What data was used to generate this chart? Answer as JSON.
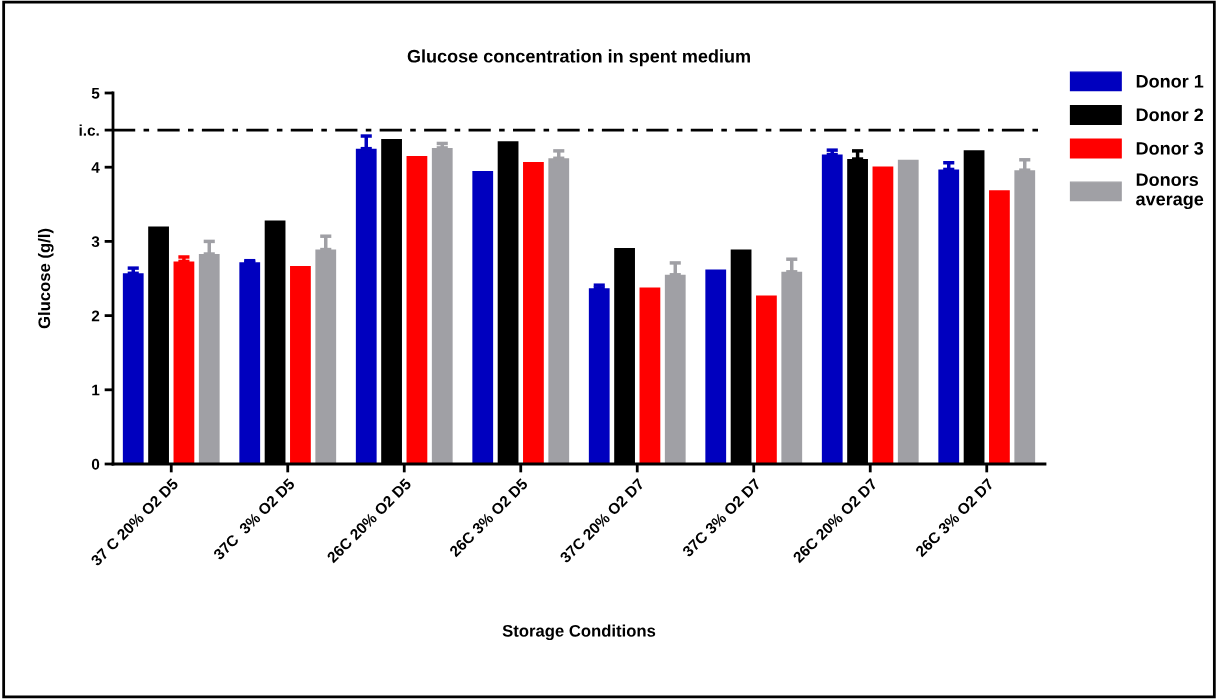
{
  "chart_data": {
    "type": "bar",
    "title": "Glucose concentration in spent medium",
    "xlabel": "Storage Conditions",
    "ylabel": "Glucose (g/l)",
    "categories": [
      "37 C 20% O2 D5",
      "37C  3% O2 D5",
      "26C 20% O2 D5",
      "26C 3% O2 D5",
      "37C 20% O2 D7",
      "37C 3% O2 D7",
      "26C 20% O2 D7",
      "26C 3% O2 D7"
    ],
    "series": [
      {
        "name": "Donor 1",
        "color": "#0000bf",
        "values": [
          2.57,
          2.72,
          4.25,
          3.95,
          2.37,
          2.62,
          4.17,
          3.97
        ],
        "errors": [
          [
            2.57,
            2.64
          ],
          [
            2.72,
            2.74
          ],
          [
            4.25,
            4.42
          ],
          null,
          [
            2.37,
            2.41
          ],
          null,
          [
            4.17,
            4.23
          ],
          [
            3.97,
            4.06
          ]
        ]
      },
      {
        "name": "Donor 2",
        "color": "#000000",
        "values": [
          3.2,
          3.28,
          4.38,
          4.35,
          2.91,
          2.89,
          4.11,
          4.23
        ],
        "errors": [
          null,
          null,
          null,
          null,
          null,
          null,
          [
            4.11,
            4.22
          ],
          null
        ]
      },
      {
        "name": "Donor 3",
        "color": "#ff0000",
        "values": [
          2.73,
          2.67,
          4.15,
          4.07,
          2.38,
          2.27,
          4.01,
          3.69
        ],
        "errors": [
          [
            2.73,
            2.79
          ],
          null,
          null,
          null,
          null,
          null,
          null,
          null
        ]
      },
      {
        "name": "Donors average",
        "color": "#a0a0a5",
        "values": [
          2.83,
          2.89,
          4.26,
          4.12,
          2.55,
          2.59,
          4.1,
          3.96
        ],
        "errors": [
          [
            2.83,
            3.0
          ],
          [
            2.89,
            3.07
          ],
          [
            4.26,
            4.32
          ],
          [
            4.12,
            4.22
          ],
          [
            2.55,
            2.71
          ],
          [
            2.59,
            2.76
          ],
          null,
          [
            3.96,
            4.1
          ]
        ]
      }
    ],
    "ylim": [
      0,
      5
    ],
    "yticks": [
      0,
      1,
      2,
      3,
      4,
      {
        "value": 4.5,
        "label": "i.c."
      },
      5
    ],
    "ref_lines": [
      {
        "axis": "y",
        "value": 4.5,
        "color": "#000000",
        "line_style": "dashdot"
      }
    ],
    "grid": false,
    "legend": "right"
  }
}
